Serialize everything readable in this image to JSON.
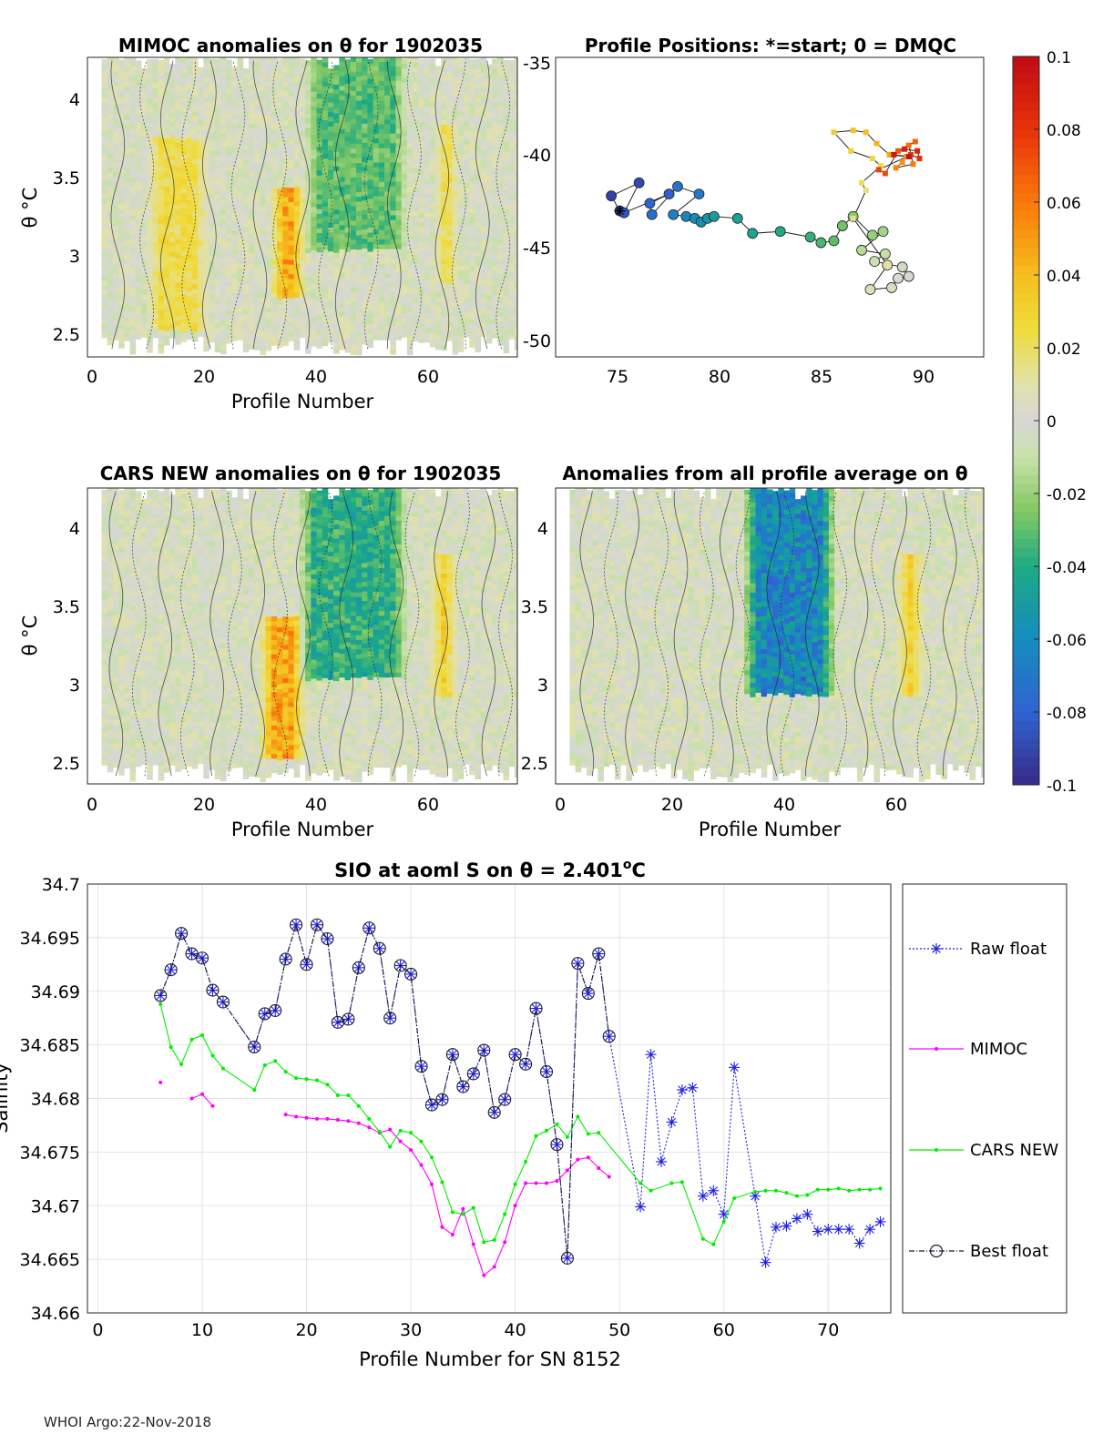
{
  "footer": "WHOI Argo:22-Nov-2018",
  "colors": {
    "raw_float": "#1f1fe0",
    "mimoc": "#ff00ff",
    "cars_new": "#00ee00",
    "best_float": "#1a1a2e",
    "grid": "#e6e6e6",
    "axis": "#262626"
  },
  "colorbar": {
    "ticks": [
      "0.1",
      "0.08",
      "0.06",
      "0.04",
      "0.02",
      "0",
      "-0.02",
      "-0.04",
      "-0.06",
      "-0.08",
      "-0.1"
    ],
    "range": [
      -0.1,
      0.1
    ],
    "colormap": "parula-to-jet"
  },
  "panels": {
    "mimoc": {
      "title": "MIMOC anomalies on θ  for 1902035",
      "xlabel": "Profile Number",
      "ylabel": "θ °C",
      "xticks": [
        "0",
        "20",
        "40",
        "60"
      ],
      "yticks": [
        "4",
        "3.5",
        "3",
        "2.5"
      ]
    },
    "positions": {
      "title": "Profile Positions: *=start; 0 = DMQC",
      "xticks": [
        "75",
        "80",
        "85",
        "90"
      ],
      "yticks": [
        "-35",
        "-40",
        "-45",
        "-50"
      ]
    },
    "cars": {
      "title": "CARS NEW anomalies on θ for 1902035",
      "xlabel": "Profile Number",
      "ylabel": "θ °C",
      "xticks": [
        "0",
        "20",
        "40",
        "60"
      ],
      "yticks": [
        "4",
        "3.5",
        "3",
        "2.5"
      ]
    },
    "allavg": {
      "title": "Anomalies from all profile average on θ",
      "xlabel": "Profile Number",
      "xticks": [
        "0",
        "20",
        "40",
        "60"
      ],
      "yticks": [
        "4",
        "3.5",
        "3",
        "2.5"
      ]
    }
  },
  "chart_data": [
    {
      "type": "heatmap",
      "title": "MIMOC anomalies on θ  for 1902035",
      "xlabel": "Profile Number",
      "ylabel": "θ °C",
      "xlim": [
        -1,
        75
      ],
      "ylim": [
        2.35,
        4.22
      ],
      "clim": [
        -0.1,
        0.1
      ],
      "x_range_profiles": [
        2,
        75
      ],
      "features": [
        {
          "profile_range": [
            10,
            20
          ],
          "theta_range": [
            2.5,
            3.7
          ],
          "anomaly": 0.03
        },
        {
          "profile_range": [
            32,
            37
          ],
          "theta_range": [
            2.7,
            3.4
          ],
          "anomaly": 0.06
        },
        {
          "profile_range": [
            38,
            55
          ],
          "theta_range": [
            3.0,
            4.2
          ],
          "anomaly": -0.04
        },
        {
          "profile_range": [
            61,
            64
          ],
          "theta_range": [
            2.8,
            3.8
          ],
          "anomaly": 0.04
        }
      ]
    },
    {
      "type": "scatter",
      "title": "Profile Positions: *=start; 0 = DMQC",
      "xlabel": "",
      "ylabel": "",
      "xlim": [
        73,
        93
      ],
      "ylim": [
        -51,
        -35
      ],
      "points": [
        [
          76.0,
          -43.2
        ],
        [
          75.6,
          -42.4
        ],
        [
          76.9,
          -41.7
        ],
        [
          76.2,
          -43.3
        ],
        [
          78.3,
          -42.3
        ],
        [
          77.4,
          -42.8
        ],
        [
          77.5,
          -43.4
        ],
        [
          78.7,
          -41.9
        ],
        [
          79.7,
          -42.3
        ],
        [
          78.5,
          -43.4
        ],
        [
          79.1,
          -43.5
        ],
        [
          79.5,
          -43.6
        ],
        [
          79.8,
          -43.8
        ],
        [
          80.1,
          -43.6
        ],
        [
          80.4,
          -43.5
        ],
        [
          81.5,
          -43.6
        ],
        [
          82.2,
          -44.4
        ],
        [
          83.5,
          -44.3
        ],
        [
          84.9,
          -44.6
        ],
        [
          85.4,
          -44.9
        ],
        [
          86.0,
          -44.8
        ],
        [
          86.4,
          -44.0
        ],
        [
          86.9,
          -43.5
        ],
        [
          87.8,
          -44.5
        ],
        [
          88.3,
          -44.3
        ],
        [
          87.3,
          -45.3
        ],
        [
          88.4,
          -45.5
        ],
        [
          87.9,
          -45.9
        ],
        [
          89.2,
          -46.2
        ],
        [
          89.5,
          -46.7
        ],
        [
          89.0,
          -46.8
        ],
        [
          88.7,
          -47.3
        ],
        [
          87.7,
          -47.4
        ],
        [
          88.5,
          -46.1
        ],
        [
          86.9,
          -43.6
        ],
        [
          87.5,
          -42.1
        ],
        [
          87.3,
          -41.7
        ],
        [
          88.2,
          -40.8
        ],
        [
          87.8,
          -40.4
        ],
        [
          86.8,
          -40.0
        ],
        [
          86.0,
          -39.0
        ],
        [
          86.9,
          -38.9
        ],
        [
          87.5,
          -39.0
        ],
        [
          88.0,
          -39.6
        ],
        [
          88.6,
          -40.2
        ],
        [
          89.4,
          -40.3
        ],
        [
          89.2,
          -40.6
        ],
        [
          88.9,
          -40.9
        ],
        [
          89.7,
          -40.7
        ],
        [
          89.5,
          -39.7
        ],
        [
          89.8,
          -39.5
        ],
        [
          89.0,
          -40.0
        ],
        [
          88.4,
          -41.2
        ],
        [
          88.1,
          -41.0
        ],
        [
          89.6,
          -40.2
        ],
        [
          90.0,
          -40.4
        ],
        [
          89.9,
          -40.0
        ],
        [
          89.3,
          -39.9
        ],
        [
          88.8,
          -40.2
        ],
        [
          89.5,
          -40.3
        ]
      ]
    },
    {
      "type": "heatmap",
      "title": "CARS NEW anomalies on θ for 1902035",
      "xlabel": "Profile Number",
      "ylabel": "θ °C",
      "xlim": [
        -1,
        75
      ],
      "ylim": [
        2.35,
        4.22
      ],
      "clim": [
        -0.1,
        0.1
      ],
      "features": [
        {
          "profile_range": [
            30,
            37
          ],
          "theta_range": [
            2.5,
            3.4
          ],
          "anomaly": 0.06
        },
        {
          "profile_range": [
            37,
            55
          ],
          "theta_range": [
            3.0,
            4.2
          ],
          "anomaly": -0.05
        },
        {
          "profile_range": [
            60,
            64
          ],
          "theta_range": [
            2.9,
            3.8
          ],
          "anomaly": 0.04
        }
      ]
    },
    {
      "type": "heatmap",
      "title": "Anomalies from all profile average on θ",
      "xlabel": "Profile Number",
      "ylabel": "",
      "xlim": [
        -1,
        75
      ],
      "ylim": [
        2.35,
        4.22
      ],
      "clim": [
        -0.1,
        0.1
      ],
      "features": [
        {
          "profile_range": [
            33,
            48
          ],
          "theta_range": [
            2.9,
            4.2
          ],
          "anomaly": -0.08
        },
        {
          "profile_range": [
            60,
            64
          ],
          "theta_range": [
            2.9,
            3.8
          ],
          "anomaly": 0.04
        }
      ]
    },
    {
      "type": "line",
      "title": "SIO at aoml S on θ = 2.401°C",
      "xlabel": "Profile Number for SN 8152",
      "ylabel": "Salinity",
      "xlim": [
        -1,
        76
      ],
      "ylim": [
        34.66,
        34.7
      ],
      "xticks": [
        "0",
        "10",
        "20",
        "30",
        "40",
        "50",
        "60",
        "70"
      ],
      "yticks": [
        "34.7",
        "34.695",
        "34.69",
        "34.685",
        "34.68",
        "34.675",
        "34.67",
        "34.665",
        "34.66"
      ],
      "legend": [
        "Raw float",
        "MIMOC",
        "CARS NEW",
        "Best float"
      ],
      "legend_position": "outside-right",
      "series": [
        {
          "name": "Raw float",
          "x": [
            6,
            7,
            8,
            9,
            10,
            11,
            12,
            15,
            16,
            17,
            18,
            19,
            20,
            21,
            22,
            23,
            24,
            25,
            26,
            27,
            28,
            29,
            30,
            31,
            32,
            33,
            34,
            35,
            36,
            37,
            38,
            39,
            40,
            41,
            42,
            43,
            44,
            45,
            46,
            47,
            48,
            49,
            52,
            53,
            54,
            55,
            56,
            57,
            58,
            59,
            60,
            61,
            63,
            64,
            65,
            66,
            67,
            68,
            69,
            70,
            71,
            72,
            73,
            74,
            75
          ],
          "y": [
            34.6896,
            34.692,
            34.6954,
            34.6935,
            34.6931,
            34.6901,
            34.689,
            34.6848,
            34.6879,
            34.6882,
            34.693,
            34.6962,
            34.6925,
            34.6962,
            34.6949,
            34.6871,
            34.6874,
            34.6922,
            34.6959,
            34.694,
            34.6875,
            34.6924,
            34.6916,
            34.683,
            34.6794,
            34.6799,
            34.6841,
            34.6811,
            34.6823,
            34.6845,
            34.6787,
            34.6799,
            34.6841,
            34.6832,
            34.6884,
            34.6825,
            34.6757,
            34.6651,
            34.6926,
            34.6898,
            34.6935,
            34.6858,
            34.6699,
            34.6841,
            34.6741,
            34.6778,
            34.6808,
            34.681,
            34.6709,
            34.6714,
            34.6692,
            34.6829,
            34.6709,
            34.6647,
            34.668,
            34.6681,
            34.6688,
            34.6692,
            34.6676,
            34.6678,
            34.6678,
            34.6678,
            34.6665,
            34.6678,
            34.6685
          ]
        },
        {
          "name": "MIMOC",
          "x": [
            6,
            9,
            10,
            11,
            18,
            19,
            20,
            21,
            22,
            23,
            24,
            25,
            26,
            27,
            28,
            29,
            30,
            31,
            32,
            33,
            34,
            35,
            36,
            37,
            38,
            39,
            40,
            41,
            42,
            43,
            44,
            45,
            46,
            47,
            48,
            49
          ],
          "y": [
            34.6815,
            34.68,
            34.6804,
            34.6793,
            34.6785,
            34.6783,
            34.6782,
            34.6781,
            34.6781,
            34.678,
            34.6779,
            34.6777,
            34.6773,
            34.6768,
            34.6771,
            34.676,
            34.6752,
            34.6738,
            34.672,
            34.668,
            34.6673,
            34.6697,
            34.6664,
            34.6635,
            34.6643,
            34.6666,
            34.67,
            34.6721,
            34.6721,
            34.6721,
            34.6723,
            34.6733,
            34.6743,
            34.6745,
            34.6735,
            34.6727
          ]
        },
        {
          "name": "CARS NEW",
          "x": [
            6,
            7,
            8,
            9,
            10,
            11,
            12,
            15,
            16,
            17,
            18,
            19,
            20,
            21,
            22,
            23,
            24,
            25,
            26,
            27,
            28,
            29,
            30,
            31,
            32,
            33,
            34,
            35,
            36,
            37,
            38,
            39,
            40,
            41,
            42,
            43,
            44,
            45,
            46,
            47,
            48,
            52,
            53,
            55,
            56,
            58,
            59,
            60,
            61,
            63,
            64,
            65,
            66,
            67,
            68,
            69,
            70,
            71,
            72,
            73,
            74,
            75
          ],
          "y": [
            34.6888,
            34.6848,
            34.6832,
            34.6855,
            34.6859,
            34.684,
            34.6828,
            34.6808,
            34.6831,
            34.6835,
            34.6825,
            34.6819,
            34.6818,
            34.6817,
            34.6813,
            34.6803,
            34.6803,
            34.6793,
            34.6781,
            34.6769,
            34.6755,
            34.677,
            34.6768,
            34.676,
            34.6745,
            34.6722,
            34.6694,
            34.6692,
            34.6698,
            34.6666,
            34.6668,
            34.6692,
            34.672,
            34.6741,
            34.6765,
            34.677,
            34.6776,
            34.6764,
            34.6783,
            34.6767,
            34.6768,
            34.6721,
            34.6714,
            34.6721,
            34.6722,
            34.6669,
            34.6664,
            34.6685,
            34.6707,
            34.6713,
            34.6714,
            34.6714,
            34.6712,
            34.6709,
            34.671,
            34.6715,
            34.6715,
            34.6716,
            34.6714,
            34.6715,
            34.6715,
            34.6716
          ]
        },
        {
          "name": "Best float",
          "x": [
            6,
            7,
            8,
            9,
            10,
            11,
            12,
            15,
            16,
            17,
            18,
            19,
            20,
            21,
            22,
            23,
            24,
            25,
            26,
            27,
            28,
            29,
            30,
            31,
            32,
            33,
            34,
            35,
            36,
            37,
            38,
            39,
            40,
            41,
            42,
            43,
            44,
            45,
            46,
            47,
            48,
            49
          ],
          "y": [
            34.6896,
            34.692,
            34.6954,
            34.6935,
            34.6931,
            34.6901,
            34.689,
            34.6848,
            34.6879,
            34.6882,
            34.693,
            34.6962,
            34.6925,
            34.6962,
            34.6949,
            34.6871,
            34.6874,
            34.6922,
            34.6959,
            34.694,
            34.6875,
            34.6924,
            34.6916,
            34.683,
            34.6794,
            34.6799,
            34.6841,
            34.6811,
            34.6823,
            34.6845,
            34.6787,
            34.6799,
            34.6841,
            34.6832,
            34.6884,
            34.6825,
            34.6757,
            34.6651,
            34.6926,
            34.6898,
            34.6935,
            34.6858
          ]
        }
      ]
    }
  ],
  "bottom": {
    "title_main": "SIO at aoml S on θ = 2.401",
    "title_sup": "o",
    "title_end": "C",
    "xlabel": "Profile Number for SN 8152",
    "ylabel": "Salinity",
    "legend": {
      "raw": "Raw float",
      "mimoc": "MIMOC",
      "cars": "CARS NEW",
      "best": "Best float"
    }
  }
}
